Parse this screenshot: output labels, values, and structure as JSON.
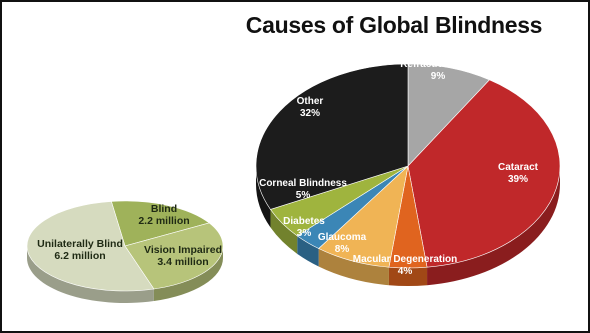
{
  "chart_data": [
    {
      "type": "pie",
      "title": "",
      "slices": [
        {
          "label": "Blind",
          "value_text": "2.2 million",
          "value": 2.2,
          "color": "#9fb25a"
        },
        {
          "label": "Vision Impaired",
          "value_text": "3.4 million",
          "value": 3.4,
          "color": "#b7c47a"
        },
        {
          "label": "Unilaterally Blind",
          "value_text": "6.2 million",
          "value": 6.2,
          "color": "#d6dbbf"
        }
      ]
    },
    {
      "type": "pie",
      "title": "Causes of Global Blindness",
      "slices": [
        {
          "label": "Refractive Error",
          "value_text": "9%",
          "value": 9,
          "color": "#a6a6a6"
        },
        {
          "label": "Cataract",
          "value_text": "39%",
          "value": 39,
          "color": "#c0282a"
        },
        {
          "label": "Macular Degeneration",
          "value_text": "4%",
          "value": 4,
          "color": "#e0641f"
        },
        {
          "label": "Glaucoma",
          "value_text": "8%",
          "value": 8,
          "color": "#f0b455"
        },
        {
          "label": "Diabetes",
          "value_text": "3%",
          "value": 3,
          "color": "#3b86b6"
        },
        {
          "label": "Corneal Blindness",
          "value_text": "5%",
          "value": 5,
          "color": "#9fb43e"
        },
        {
          "label": "Other",
          "value_text": "32%",
          "value": 32,
          "color": "#1c1c1c"
        }
      ]
    }
  ]
}
